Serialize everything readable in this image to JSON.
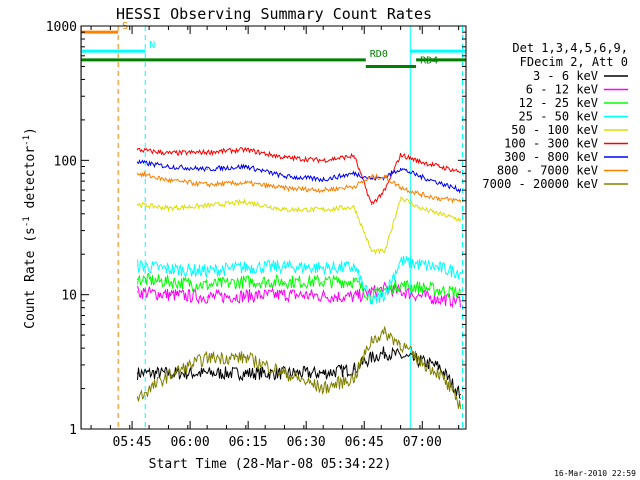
{
  "chart_data": {
    "type": "line",
    "title": "HESSI Observing Summary Count Rates",
    "xlabel": "Start Time (28-Mar-08 05:34:22)",
    "ylabel_main": "Count Rate (s",
    "ylabel_sup1": "-1",
    "ylabel_mid": " detector",
    "ylabel_sup2": "-1",
    "ylabel_end": ")",
    "yscale": "log",
    "ylim": [
      1,
      1000
    ],
    "xlim_minutes": [
      -2.6,
      96.9
    ],
    "x_ticks": [
      {
        "label": "05:45",
        "t": 10.6
      },
      {
        "label": "06:00",
        "t": 25.6
      },
      {
        "label": "06:15",
        "t": 40.6
      },
      {
        "label": "06:30",
        "t": 55.6
      },
      {
        "label": "06:45",
        "t": 70.6
      },
      {
        "label": "07:00",
        "t": 85.6
      }
    ],
    "y_ticks": [
      {
        "label": "1",
        "v": 1
      },
      {
        "label": "10",
        "v": 10
      },
      {
        "label": "100",
        "v": 100
      },
      {
        "label": "1000",
        "v": 1000
      }
    ],
    "footer_date": "16-Mar-2010 22:59",
    "legend_header": [
      "Det 1,3,4,5,6,9,",
      "FDecim 2, Att 0"
    ],
    "series": [
      {
        "name": "3 - 6 keV",
        "color": "#000000",
        "x": [
          12.0,
          20,
          30,
          40,
          50,
          60,
          68,
          72.5,
          76,
          80,
          85,
          90,
          95.5
        ],
        "y": [
          2.6,
          2.6,
          2.6,
          2.6,
          2.6,
          2.6,
          2.8,
          3.4,
          3.7,
          3.5,
          3.2,
          2.9,
          1.8
        ]
      },
      {
        "name": "6 - 12 keV",
        "color": "#ff00ff",
        "x": [
          12.0,
          20,
          30,
          40,
          50,
          60,
          68,
          72.5,
          76,
          80,
          85,
          90,
          95.5
        ],
        "y": [
          10.5,
          10.0,
          9.6,
          9.8,
          10.0,
          9.8,
          9.6,
          10.5,
          11.0,
          10.6,
          9.8,
          9.3,
          9.0
        ]
      },
      {
        "name": "12 - 25 keV",
        "color": "#00ff00",
        "x": [
          12.0,
          20,
          30,
          40,
          50,
          60,
          68,
          72.5,
          76,
          80,
          85,
          90,
          95.5
        ],
        "y": [
          13.0,
          12.5,
          11.8,
          12.5,
          12.5,
          12.5,
          12.6,
          9.6,
          11.0,
          11.8,
          11.3,
          10.8,
          10.3
        ]
      },
      {
        "name": "25 - 50 keV",
        "color": "#00ffff",
        "x": [
          12.0,
          20,
          30,
          40,
          50,
          60,
          68,
          72.5,
          76,
          80,
          85,
          90,
          95.5
        ],
        "y": [
          16.5,
          15.5,
          15.0,
          16.0,
          16.2,
          15.8,
          16.0,
          8.8,
          10.2,
          17.8,
          16.8,
          15.8,
          14.6
        ]
      },
      {
        "name": "50 - 100 keV",
        "color": "#dddd00",
        "x": [
          12.0,
          20,
          30,
          40,
          50,
          60,
          68,
          72.5,
          76,
          80,
          85,
          90,
          95.5
        ],
        "y": [
          47,
          44,
          46,
          49,
          43,
          43,
          45,
          21,
          21,
          53,
          44,
          40,
          36
        ]
      },
      {
        "name": "100 - 300 keV",
        "color": "#ff0000",
        "x": [
          12.0,
          20,
          30,
          40,
          50,
          60,
          68,
          72.5,
          76,
          80,
          85,
          90,
          95.5
        ],
        "y": [
          120,
          113,
          115,
          120,
          105,
          100,
          108,
          47,
          60,
          110,
          98,
          90,
          82
        ]
      },
      {
        "name": "300 - 800 keV",
        "color": "#0000ff",
        "x": [
          12.0,
          20,
          30,
          40,
          50,
          60,
          68,
          72.5,
          76,
          80,
          85,
          90,
          95.5
        ],
        "y": [
          97,
          90,
          86,
          90,
          76,
          72,
          80,
          73,
          75,
          87,
          76,
          68,
          60
        ]
      },
      {
        "name": "800 - 7000 keV",
        "color": "#ff8000",
        "x": [
          12.0,
          20,
          30,
          40,
          50,
          60,
          68,
          72.5,
          76,
          80,
          85,
          90,
          95.5
        ],
        "y": [
          80,
          71,
          66,
          68,
          62,
          60,
          64,
          75,
          75,
          63,
          56,
          52,
          50
        ]
      },
      {
        "name": "7000 - 20000 keV",
        "color": "#808000",
        "x": [
          12.0,
          20,
          30,
          40,
          50,
          60,
          68,
          72.5,
          76,
          80,
          85,
          90,
          95.5
        ],
        "y": [
          1.7,
          2.5,
          3.4,
          3.4,
          2.6,
          2.0,
          2.4,
          4.6,
          5.2,
          4.3,
          3.2,
          2.6,
          1.5
        ]
      }
    ],
    "annotations": [
      {
        "label": "S",
        "color": "#ff8000",
        "bar_t": [
          -2.6,
          7.0
        ],
        "bar_y": 900,
        "line_t": 7.0,
        "line_style": "dashed"
      },
      {
        "label": "N",
        "color": "#00ffff",
        "bar_t": [
          -2.6,
          14.0
        ],
        "bar_y": 650,
        "line_t": 14.0,
        "line_style": "dashed"
      },
      {
        "label": "",
        "color": "#00ffff",
        "bar_t": [
          82.5,
          96.9
        ],
        "bar_y": 650,
        "line_t": 82.5,
        "line_style": "solid"
      },
      {
        "label": "",
        "color": "#00ffff",
        "bar_t": null,
        "bar_y": null,
        "line_t": 96.0,
        "line_style": "dashed"
      },
      {
        "label": "",
        "color": "#00ffff",
        "bar_t": null,
        "bar_y": null,
        "line_t": -2.5,
        "line_style": "solid"
      },
      {
        "label": "RD0",
        "color": "#008000",
        "bar_t": [
          -2.6,
          71.0
        ],
        "bar_y": 560,
        "line_t": null,
        "line_style": "none"
      },
      {
        "label": "",
        "color": "#008000",
        "bar_t": [
          84.0,
          96.9
        ],
        "bar_y": 560,
        "line_t": null,
        "line_style": "none"
      },
      {
        "label": "RD4",
        "color": "#008000",
        "bar_t": [
          71.0,
          84.0
        ],
        "bar_y": 500,
        "line_t": null,
        "line_style": "none"
      }
    ]
  }
}
